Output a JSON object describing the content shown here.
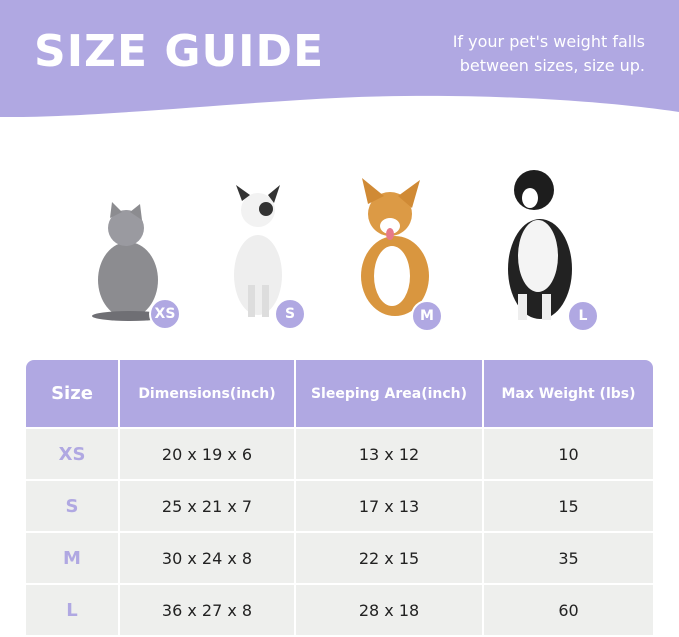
{
  "header": {
    "title": "SIZE GUIDE",
    "note_line1": "If your pet's weight falls",
    "note_line2": "between sizes, size up."
  },
  "colors": {
    "accent": "#b0a8e2",
    "row_bg": "#eeefed"
  },
  "pets": [
    {
      "animal": "cat",
      "size": "XS"
    },
    {
      "animal": "french-bulldog",
      "size": "S"
    },
    {
      "animal": "corgi",
      "size": "M"
    },
    {
      "animal": "border-collie",
      "size": "L"
    }
  ],
  "table": {
    "headers": [
      "Size",
      "Dimensions(inch)",
      "Sleeping Area(inch)",
      "Max Weight (lbs)"
    ],
    "rows": [
      [
        "XS",
        "20 x 19 x 6",
        "13 x 12",
        "10"
      ],
      [
        "S",
        "25 x 21 x 7",
        "17 x 13",
        "15"
      ],
      [
        "M",
        "30 x 24 x 8",
        "22 x 15",
        "35"
      ],
      [
        "L",
        "36 x 27 x 8",
        "28 x 18",
        "60"
      ]
    ]
  }
}
